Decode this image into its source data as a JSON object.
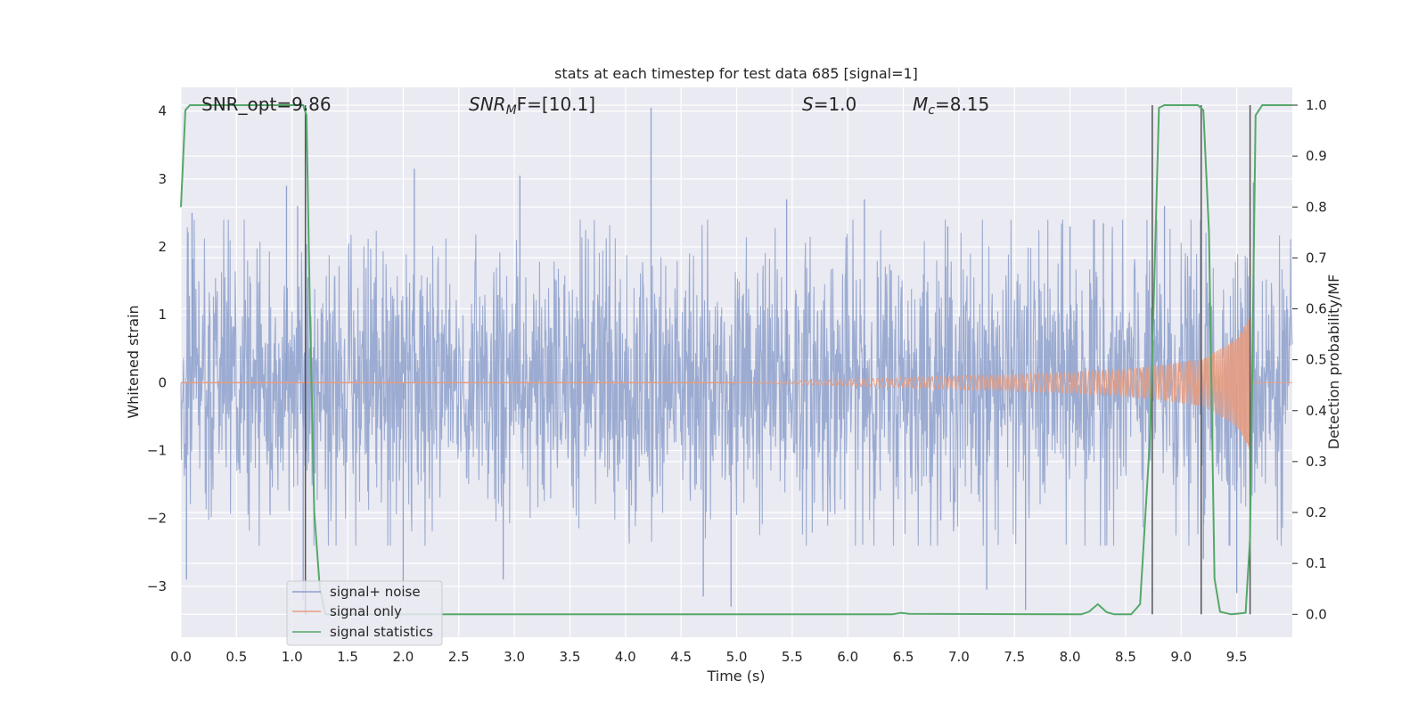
{
  "chart_data": {
    "type": "line",
    "title": "stats at each timestep for test data 685 [signal=1]",
    "xlabel": "Time (s)",
    "ylabel": "Whitened strain",
    "y2label": "Detection probability/MF",
    "xlim": [
      0,
      10
    ],
    "ylim": [
      -3.75,
      4.35
    ],
    "y2lim": [
      -0.045,
      1.035
    ],
    "xticks": [
      "0.0",
      "0.5",
      "1.0",
      "1.5",
      "2.0",
      "2.5",
      "3.0",
      "3.5",
      "4.0",
      "4.5",
      "5.0",
      "5.5",
      "6.0",
      "6.5",
      "7.0",
      "7.5",
      "8.0",
      "8.5",
      "9.0",
      "9.5"
    ],
    "yticks": [
      "4",
      "3",
      "2",
      "1",
      "0",
      "−1",
      "−2",
      "−3"
    ],
    "y2ticks": [
      "1.0",
      "0.9",
      "0.8",
      "0.7",
      "0.6",
      "0.5",
      "0.4",
      "0.3",
      "0.2",
      "0.1",
      "0.0"
    ],
    "grid": true,
    "legend_position": "lower-left",
    "annotations": {
      "snr_opt": "SNR_opt=9.86",
      "snr_mf_name": "SNR",
      "snr_mf_sub": "M",
      "snr_mf_rest": "F=[10.1]",
      "s_name": "S",
      "s_rest": "=1.0",
      "mc_name": "M",
      "mc_sub": "c",
      "mc_rest": "=8.15"
    },
    "noise": {
      "name": "signal+ noise",
      "color": "#8da0cb",
      "envelope": 2.0,
      "peaks": [
        {
          "x": 0.1,
          "y": 2.5
        },
        {
          "x": 0.05,
          "y": -2.9
        },
        {
          "x": 0.95,
          "y": 2.9
        },
        {
          "x": 1.05,
          "y": 2.6
        },
        {
          "x": 1.1,
          "y": -3.2
        },
        {
          "x": 2.1,
          "y": 3.15
        },
        {
          "x": 2.0,
          "y": -3.0
        },
        {
          "x": 2.9,
          "y": -2.9
        },
        {
          "x": 3.05,
          "y": 3.05
        },
        {
          "x": 4.23,
          "y": 4.05
        },
        {
          "x": 4.7,
          "y": -3.15
        },
        {
          "x": 4.95,
          "y": -3.3
        },
        {
          "x": 5.45,
          "y": 2.7
        },
        {
          "x": 6.15,
          "y": 2.7
        },
        {
          "x": 6.9,
          "y": 2.3
        },
        {
          "x": 7.25,
          "y": -3.05
        },
        {
          "x": 7.6,
          "y": -3.35
        },
        {
          "x": 8.0,
          "y": 2.3
        },
        {
          "x": 8.3,
          "y": 2.35
        },
        {
          "x": 8.85,
          "y": 2.6
        },
        {
          "x": 9.2,
          "y": -2.6
        },
        {
          "x": 9.65,
          "y": 2.95
        },
        {
          "x": 9.5,
          "y": -3.1
        }
      ]
    },
    "signal_only": {
      "name": "signal only",
      "color": "#e59c81",
      "chirp_start": 5.0,
      "merger_time": 9.63,
      "envelope": [
        [
          5.0,
          0.0
        ],
        [
          6.0,
          0.05
        ],
        [
          7.0,
          0.1
        ],
        [
          8.0,
          0.15
        ],
        [
          8.5,
          0.2
        ],
        [
          8.8,
          0.25
        ],
        [
          9.2,
          0.35
        ],
        [
          9.5,
          0.65
        ],
        [
          9.62,
          1.0
        ],
        [
          9.66,
          0.03
        ],
        [
          10.0,
          0.0
        ]
      ]
    },
    "signal_statistics": {
      "name": "signal statistics",
      "color": "#55a868",
      "axis": "right",
      "points": [
        [
          0.0,
          0.8
        ],
        [
          0.04,
          0.99
        ],
        [
          0.08,
          1.0
        ],
        [
          1.1,
          1.0
        ],
        [
          1.13,
          0.98
        ],
        [
          1.16,
          0.6
        ],
        [
          1.2,
          0.2
        ],
        [
          1.25,
          0.05
        ],
        [
          1.3,
          0.0
        ],
        [
          6.4,
          0.0
        ],
        [
          6.48,
          0.003
        ],
        [
          6.55,
          0.001
        ],
        [
          8.1,
          0.0
        ],
        [
          8.17,
          0.005
        ],
        [
          8.25,
          0.02
        ],
        [
          8.33,
          0.004
        ],
        [
          8.4,
          0.0
        ],
        [
          8.55,
          0.0
        ],
        [
          8.63,
          0.02
        ],
        [
          8.72,
          0.35
        ],
        [
          8.8,
          0.995
        ],
        [
          8.85,
          1.0
        ],
        [
          9.15,
          1.0
        ],
        [
          9.2,
          0.99
        ],
        [
          9.25,
          0.75
        ],
        [
          9.3,
          0.07
        ],
        [
          9.35,
          0.005
        ],
        [
          9.45,
          0.0
        ],
        [
          9.58,
          0.003
        ],
        [
          9.62,
          0.15
        ],
        [
          9.67,
          0.98
        ],
        [
          9.73,
          1.0
        ],
        [
          10.0,
          1.0
        ]
      ]
    },
    "vertical_lines": [
      1.12,
      8.74,
      9.18,
      9.62
    ],
    "vertical_line_color": "#555555",
    "colors": {
      "plot_background": "#eaeaf2",
      "grid": "#ffffff",
      "text": "#262626"
    }
  }
}
